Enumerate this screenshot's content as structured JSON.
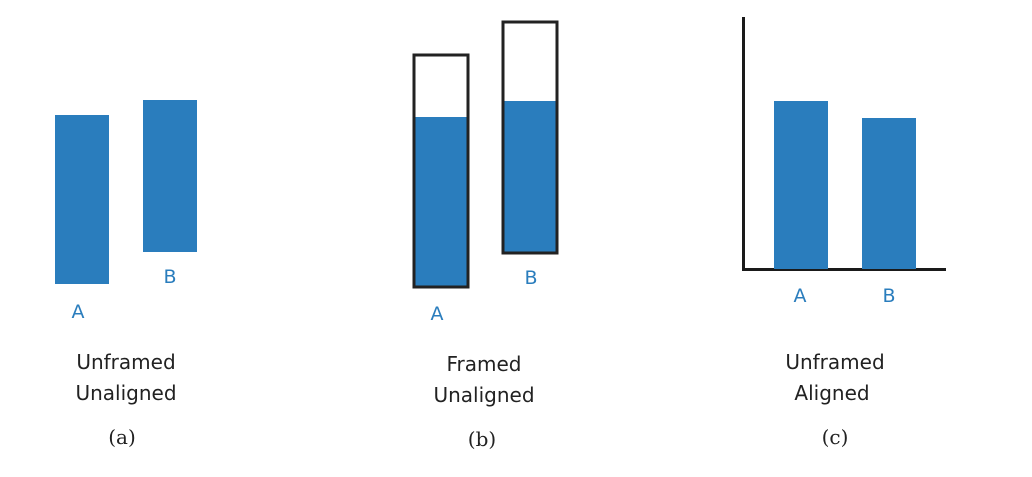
{
  "colors": {
    "bar": "#2a7dbd",
    "frame": "#222222",
    "axis": "#1a1a1a",
    "label": "#2a7dbd",
    "caption": "#222222"
  },
  "panels": [
    {
      "id": "a",
      "framed": false,
      "aligned": false,
      "caption_line1": "Unframed",
      "caption_line2": "Unaligned",
      "letter": "(a)",
      "bars": [
        {
          "label": "A",
          "value": 0.85
        },
        {
          "label": "B",
          "value": 0.78
        }
      ]
    },
    {
      "id": "b",
      "framed": true,
      "aligned": false,
      "caption_line1": "Framed",
      "caption_line2": "Unaligned",
      "letter": "(b)",
      "bars": [
        {
          "label": "A",
          "value": 0.742
        },
        {
          "label": "B",
          "value": 0.657
        }
      ]
    },
    {
      "id": "c",
      "framed": false,
      "aligned": true,
      "caption_line1": "Unframed",
      "caption_line2": "Aligned",
      "letter": "(c)",
      "bars": [
        {
          "label": "A",
          "value": 0.85
        },
        {
          "label": "B",
          "value": 0.78
        }
      ]
    }
  ]
}
